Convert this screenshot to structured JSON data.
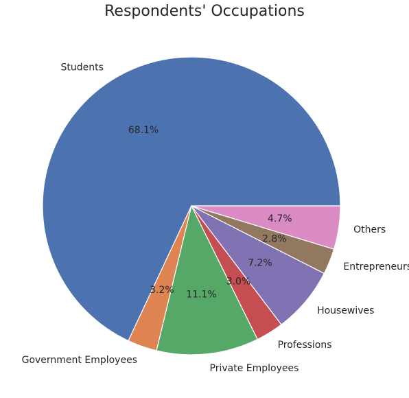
{
  "chart_data": {
    "type": "pie",
    "title": "Respondents' Occupations",
    "categories": [
      "Students",
      "Government Employees",
      "Private Employees",
      "Professions",
      "Housewives",
      "Entrepreneurs",
      "Others"
    ],
    "values": [
      68.1,
      3.2,
      11.1,
      3.0,
      7.2,
      2.8,
      4.7
    ],
    "value_labels": [
      "68.1%",
      "3.2%",
      "11.1%",
      "3.0%",
      "7.2%",
      "2.8%",
      "4.7%"
    ],
    "colors": [
      "#4c72b0",
      "#dd8452",
      "#55a868",
      "#c44e52",
      "#8172b3",
      "#937860",
      "#da8bc3"
    ]
  }
}
